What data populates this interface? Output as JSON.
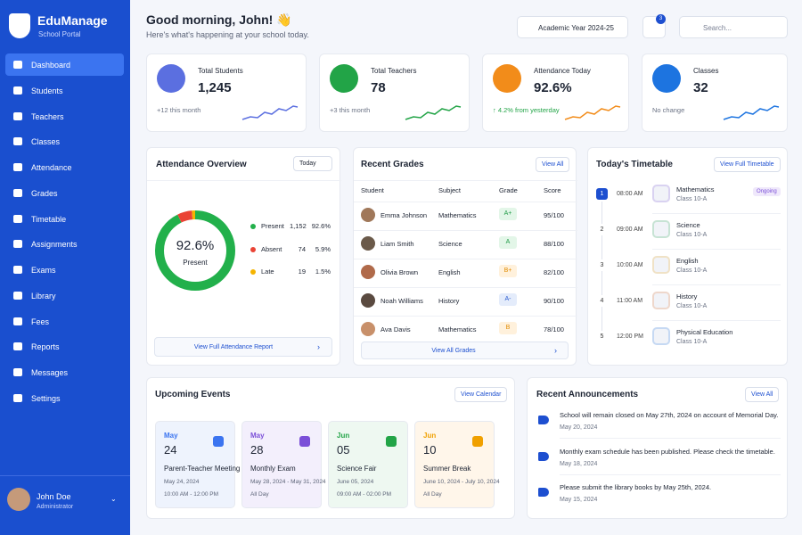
{
  "sidebar": {
    "brand": {
      "title": "EduManage",
      "subtitle": "School Portal"
    },
    "nav": [
      "Dashboard",
      "Students",
      "Teachers",
      "Classes",
      "Attendance",
      "Grades",
      "Timetable",
      "Assignments",
      "Exams",
      "Library",
      "Fees",
      "Reports",
      "Messages",
      "Settings"
    ],
    "user": {
      "name": "John Doe",
      "role": "Administrator"
    }
  },
  "header": {
    "greeting": "Good morning, John! 👋",
    "subtitle": "Here's what's happening at your school today.",
    "academic_year": "Academic Year 2024-25",
    "notifications": "3",
    "search_placeholder": "Search..."
  },
  "stats": [
    {
      "label": "Total Students",
      "value": "1,245",
      "note": "+12 this month"
    },
    {
      "label": "Total Teachers",
      "value": "78",
      "note": "+3 this month"
    },
    {
      "label": "Attendance Today",
      "value": "92.6%",
      "note": "↑ 4.2% from yesterday"
    },
    {
      "label": "Classes",
      "value": "32",
      "note": "No change"
    }
  ],
  "attendance": {
    "title": "Attendance Overview",
    "filter": "Today",
    "center_value": "92.6%",
    "center_label": "Present",
    "items": [
      {
        "label": "Present",
        "count": "1,152",
        "percent": 92.6,
        "percent_label": "92.6%"
      },
      {
        "label": "Absent",
        "count": "74",
        "percent": 5.9,
        "percent_label": "5.9%"
      },
      {
        "label": "Late",
        "count": "19",
        "percent": 1.5,
        "percent_label": "1.5%"
      }
    ],
    "link": "View Full Attendance Report"
  },
  "grades": {
    "title": "Recent Grades",
    "link": "View All",
    "columns": [
      "Student",
      "Subject",
      "Grade",
      "Score"
    ],
    "rows": [
      [
        "Emma Johnson",
        "Mathematics",
        "A+",
        "95/100"
      ],
      [
        "Liam Smith",
        "Science",
        "A",
        "88/100"
      ],
      [
        "Olivia Brown",
        "English",
        "B+",
        "82/100"
      ],
      [
        "Noah Williams",
        "History",
        "A-",
        "90/100"
      ],
      [
        "Ava Davis",
        "Mathematics",
        "B",
        "78/100"
      ]
    ],
    "footer": "View All Grades"
  },
  "timetable": {
    "title": "Today's Timetable",
    "link": "View Full Timetable",
    "items": [
      {
        "period": "1",
        "time": "08:00 AM",
        "subject": "Mathematics",
        "class": "Class 10-A",
        "status": "Ongoing"
      },
      {
        "period": "2",
        "time": "09:00 AM",
        "subject": "Science",
        "class": "Class 10-A"
      },
      {
        "period": "3",
        "time": "10:00 AM",
        "subject": "English",
        "class": "Class 10-A"
      },
      {
        "period": "4",
        "time": "11:00 AM",
        "subject": "History",
        "class": "Class 10-A"
      },
      {
        "period": "5",
        "time": "12:00 PM",
        "subject": "Physical Education",
        "class": "Class 10-A"
      }
    ]
  },
  "events": {
    "title": "Upcoming Events",
    "link": "View Calendar",
    "items": [
      {
        "month": "May",
        "day": "24",
        "title": "Parent-Teacher Meeting",
        "date": "May 24, 2024",
        "time": "10:00 AM - 12:00 PM"
      },
      {
        "month": "May",
        "day": "28",
        "title": "Monthly Exam",
        "date": "May 28, 2024 - May 31, 2024",
        "time": "All Day"
      },
      {
        "month": "Jun",
        "day": "05",
        "title": "Science Fair",
        "date": "June 05, 2024",
        "time": "09:00 AM - 02:00 PM"
      },
      {
        "month": "Jun",
        "day": "10",
        "title": "Summer Break",
        "date": "June 10, 2024 - July 10, 2024",
        "time": "All Day"
      }
    ]
  },
  "announcements": {
    "title": "Recent Announcements",
    "link": "View All",
    "items": [
      {
        "text": "School will remain closed on May 27th, 2024 on account of Memorial Day.",
        "date": "May 20, 2024"
      },
      {
        "text": "Monthly exam schedule has been published. Please check the timetable.",
        "date": "May 18, 2024"
      },
      {
        "text": "Please submit the library books by May 25th, 2024.",
        "date": "May 15, 2024"
      }
    ]
  }
}
